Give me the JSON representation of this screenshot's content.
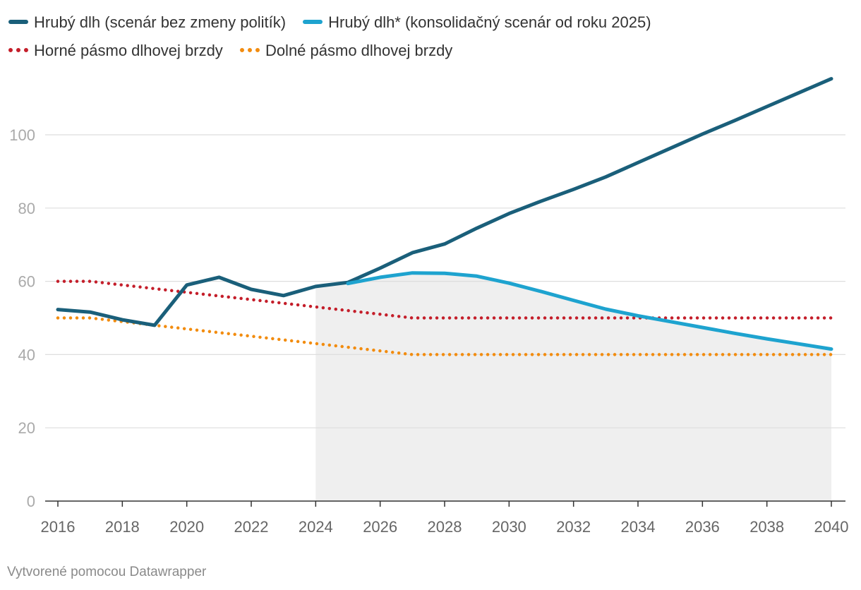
{
  "chart_data": {
    "type": "line",
    "title": "",
    "xlabel": "",
    "ylabel": "",
    "x": [
      2016,
      2017,
      2018,
      2019,
      2020,
      2021,
      2022,
      2023,
      2024,
      2025,
      2026,
      2027,
      2028,
      2029,
      2030,
      2031,
      2032,
      2033,
      2034,
      2035,
      2036,
      2037,
      2038,
      2039,
      2040
    ],
    "xticks": [
      "2016",
      "2018",
      "2020",
      "2022",
      "2024",
      "2026",
      "2028",
      "2030",
      "2032",
      "2034",
      "2036",
      "2038",
      "2040"
    ],
    "yticks": [
      "0",
      "20",
      "40",
      "60",
      "80",
      "100"
    ],
    "ylim": [
      0,
      116
    ],
    "xlim": [
      2016,
      2040
    ],
    "grid": true,
    "legend_position": "top",
    "shaded_region": {
      "x_from": 2024,
      "x_to": 2040,
      "color": "#efefef"
    },
    "series": [
      {
        "name": "Hrubý dlh (scenár bez zmeny politík)",
        "color": "#1a5f7a",
        "style": "solid",
        "values": [
          52.3,
          51.6,
          49.5,
          48.0,
          59.0,
          61.1,
          57.8,
          56.1,
          58.6,
          59.7,
          63.6,
          67.8,
          70.2,
          74.5,
          78.5,
          81.9,
          85.1,
          88.5,
          92.4,
          96.3,
          100.2,
          103.9,
          107.7,
          111.5,
          115.3
        ]
      },
      {
        "name": "Hrubý dlh* (konsolidačný scenár od roku 2025)",
        "color": "#1ea3cf",
        "style": "solid",
        "values": [
          null,
          null,
          null,
          null,
          null,
          null,
          null,
          null,
          null,
          59.4,
          61.1,
          62.3,
          62.2,
          61.4,
          59.5,
          57.2,
          54.8,
          52.4,
          50.6,
          49.0,
          47.4,
          45.8,
          44.3,
          42.9,
          41.5
        ]
      },
      {
        "name": "Horné pásmo dlhovej brzdy",
        "color": "#c41e2a",
        "style": "dotted",
        "values": [
          60,
          60,
          59,
          58,
          57,
          56,
          55,
          54,
          53,
          52,
          51,
          50,
          50,
          50,
          50,
          50,
          50,
          50,
          50,
          50,
          50,
          50,
          50,
          50,
          50
        ]
      },
      {
        "name": "Dolné pásmo dlhovej brzdy",
        "color": "#f28c0f",
        "style": "dotted",
        "values": [
          50,
          50,
          49,
          48,
          47,
          46,
          45,
          44,
          43,
          42,
          41,
          40,
          40,
          40,
          40,
          40,
          40,
          40,
          40,
          40,
          40,
          40,
          40,
          40,
          40
        ]
      }
    ]
  },
  "footer": {
    "credit": "Vytvorené pomocou Datawrapper"
  }
}
